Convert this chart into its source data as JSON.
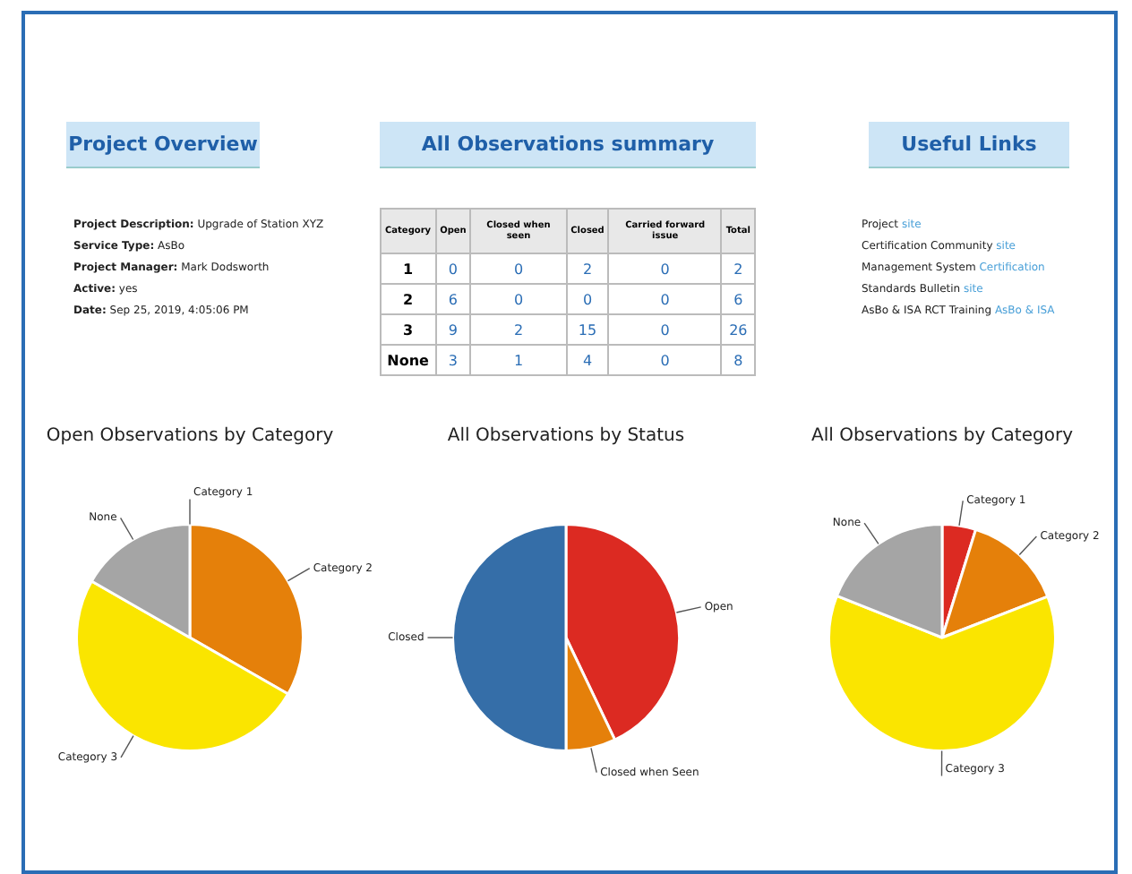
{
  "chart_data": [
    {
      "type": "other",
      "title": "Project Overview",
      "annotations": [
        "Project Description: Upgrade of Station XYZ",
        "Service Type: AsBo",
        "Project Manager: Mark Dodsworth",
        "Active: yes",
        "Date: Sep 25, 2019, 4:05:06 PM"
      ]
    },
    {
      "type": "heatmap",
      "title": "All Observations summary",
      "ylabel": "Category",
      "categories": [
        "Open",
        "Closed when seen",
        "Closed",
        "Carried forward issue",
        "Total"
      ],
      "y_categories": [
        "1",
        "2",
        "3",
        "None"
      ],
      "cells": [
        [
          0,
          0,
          2,
          0,
          2
        ],
        [
          6,
          0,
          0,
          0,
          6
        ],
        [
          9,
          2,
          15,
          0,
          26
        ],
        [
          3,
          1,
          4,
          0,
          8
        ]
      ],
      "data_labels": true
    },
    {
      "type": "other",
      "title": "Useful Links",
      "y_categories": [
        "Project",
        "Certification Community",
        "Management System",
        "Standards Bulletin",
        "AsBo & ISA RCT Training"
      ],
      "cell_labels": [
        [
          "site"
        ],
        [
          "site"
        ],
        [
          "Certification"
        ],
        [
          "site"
        ],
        [
          "AsBo & ISA"
        ]
      ]
    },
    {
      "type": "pie",
      "title": "Open Observations by Category",
      "categories": [
        "Category 1",
        "Category 2",
        "Category 3",
        "None"
      ],
      "values": [
        0,
        33.3,
        50,
        16.7
      ],
      "colors": [
        "#dc2a22",
        "#e5800a",
        "#fae500",
        "#a5a5a5"
      ]
    },
    {
      "type": "pie",
      "title": "All Observations by Status",
      "categories": [
        "Open",
        "Closed when Seen",
        "Closed"
      ],
      "values": [
        42.9,
        7.1,
        50
      ],
      "colors": [
        "#dc2a22",
        "#e5800a",
        "#356ea8"
      ]
    },
    {
      "type": "pie",
      "title": "All Observations by Category",
      "categories": [
        "Category 1",
        "Category 2",
        "Category 3",
        "None"
      ],
      "values": [
        4.8,
        14.3,
        61.9,
        19
      ],
      "colors": [
        "#dc2a22",
        "#e5800a",
        "#fae500",
        "#a5a5a5"
      ]
    }
  ]
}
